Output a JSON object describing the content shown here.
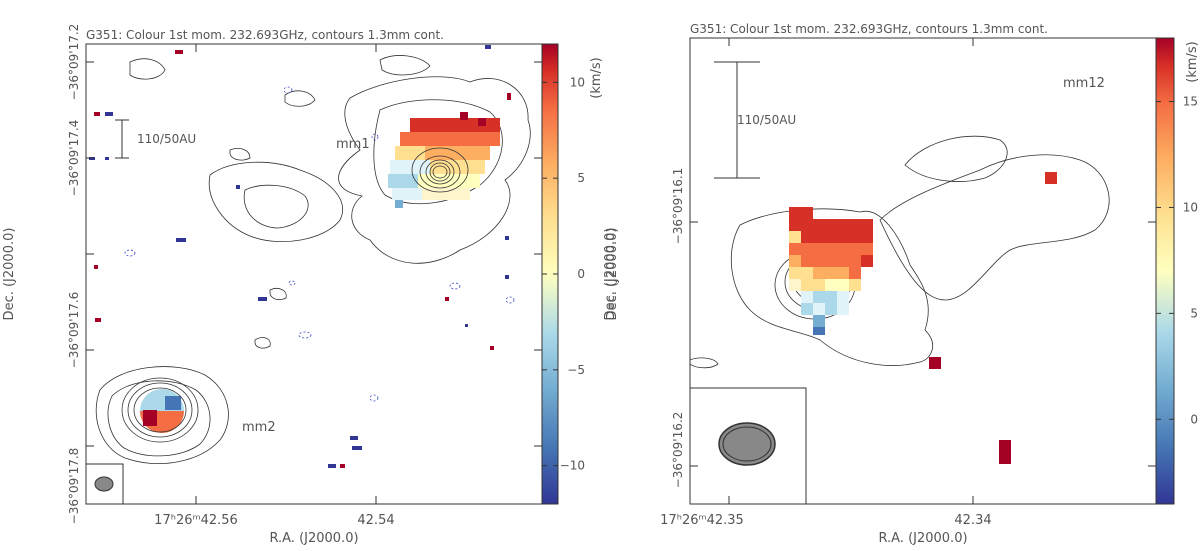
{
  "chart_data": [
    {
      "type": "heatmap",
      "title": "G351: Colour 1st mom. 232.693GHz, contours 1.3mm cont.",
      "xlabel": "R.A. (J2000.0)",
      "ylabel": "Dec. (J2000.0)",
      "x_ticks": [
        "17h26m42.56s",
        "42.54s"
      ],
      "x_ticks_display": [
        "17ʰ26ᵐ42.56",
        "42.54"
      ],
      "y_ticks": [
        "−36°09'17.2",
        "−36°09'17.4",
        "−36°09'17.6",
        "−36°09'17.8"
      ],
      "colorbar": {
        "label": "(km/s)",
        "range": [
          -12,
          12
        ],
        "ticks": [
          10,
          5,
          0,
          -5,
          -10
        ],
        "tick_labels": [
          "10",
          "5",
          "0",
          "−5",
          "−10"
        ]
      },
      "scale_bar_label": "110/50AU",
      "sources": [
        {
          "name": "mm1",
          "label": "mm1"
        },
        {
          "name": "mm2",
          "label": "mm2"
        }
      ]
    },
    {
      "type": "heatmap",
      "title": "G351: Colour 1st mom. 232.693GHz, contours 1.3mm cont.",
      "xlabel": "R.A. (J2000.0)",
      "ylabel": "Dec. (J2000.0)",
      "x_ticks": [
        "17h26m42.35s",
        "42.34s"
      ],
      "x_ticks_display": [
        "17ʰ26ᵐ42.35",
        "42.34"
      ],
      "y_ticks": [
        "−36°09'16.1",
        "−36°09'16.2"
      ],
      "colorbar": {
        "label": "(km/s)",
        "range": [
          -4,
          18
        ],
        "ticks": [
          15,
          10,
          5,
          0
        ],
        "tick_labels": [
          "15",
          "10",
          "5",
          "0"
        ]
      },
      "scale_bar_label": "110/50AU",
      "sources": [
        {
          "name": "mm12",
          "label": "mm12"
        }
      ]
    }
  ],
  "colors": {
    "frame": "#333333",
    "contour": "#333333",
    "negative_contour": "#3344cc",
    "beam": "#888888"
  }
}
